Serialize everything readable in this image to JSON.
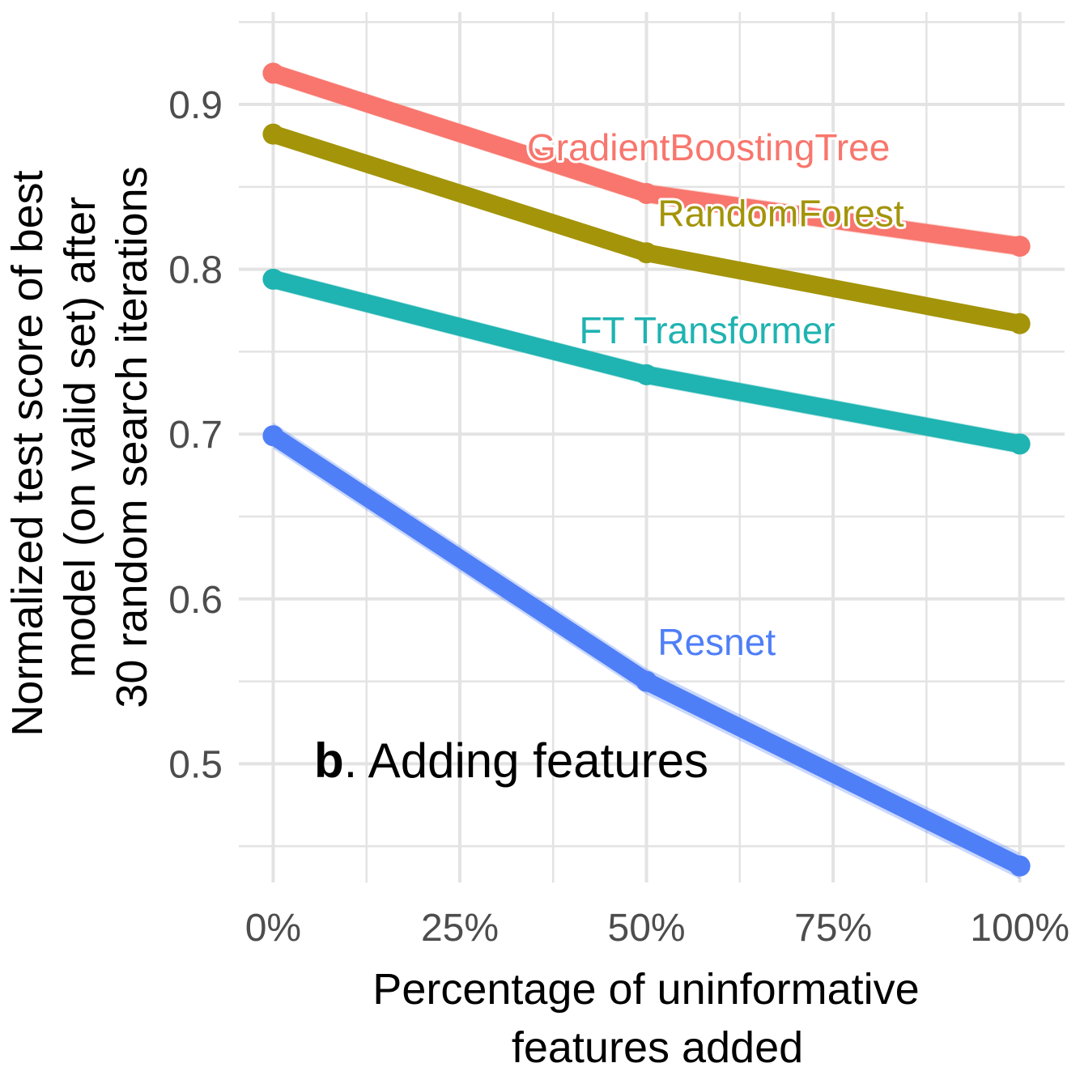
{
  "chart_data": {
    "type": "line",
    "title_bold": "b",
    "title_rest": ". Adding features",
    "xlabel_line1": "Percentage of uninformative",
    "xlabel_line2": "features added",
    "ylabel_line1": "Normalized test score of best",
    "ylabel_line2": "model (on valid set) after",
    "ylabel_line3": "30 random search iterations",
    "x": [
      0,
      0.5,
      1.0
    ],
    "xlim": [
      -0.046,
      1.06
    ],
    "ylim": [
      0.428,
      0.956
    ],
    "x_ticks": [
      {
        "value": 0,
        "label": "0%"
      },
      {
        "value": 0.25,
        "label": "25%"
      },
      {
        "value": 0.5,
        "label": "50%"
      },
      {
        "value": 0.75,
        "label": "75%"
      },
      {
        "value": 1.0,
        "label": "100%"
      }
    ],
    "y_ticks": [
      {
        "value": 0.5,
        "label": "0.5"
      },
      {
        "value": 0.6,
        "label": "0.6"
      },
      {
        "value": 0.7,
        "label": "0.7"
      },
      {
        "value": 0.8,
        "label": "0.8"
      },
      {
        "value": 0.9,
        "label": "0.9"
      }
    ],
    "series": [
      {
        "name": "GradientBoostingTree",
        "color": "#F8766D",
        "values": [
          0.919,
          0.846,
          0.814
        ],
        "band": 0.006,
        "label_x": 0.34,
        "label_y": 0.866
      },
      {
        "name": "RandomForest",
        "color": "#A3940A",
        "values": [
          0.882,
          0.81,
          0.767
        ],
        "band": 0.004,
        "label_x": 0.515,
        "label_y": 0.826
      },
      {
        "name": "FT Transformer",
        "color": "#1FB3B1",
        "values": [
          0.794,
          0.736,
          0.694
        ],
        "band": 0.006,
        "label_x": 0.41,
        "label_y": 0.755
      },
      {
        "name": "Resnet",
        "color": "#4F7FF7",
        "values": [
          0.699,
          0.55,
          0.438
        ],
        "band": 0.008,
        "label_x": 0.515,
        "label_y": 0.566
      }
    ]
  }
}
